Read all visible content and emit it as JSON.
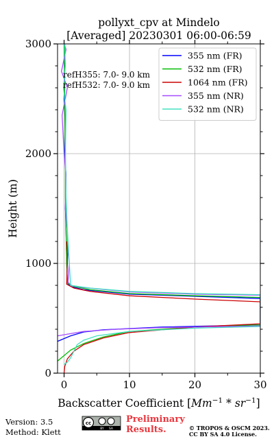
{
  "chart_data": {
    "type": "line",
    "title_line1": "pollyxt_cpv at Mindelo",
    "title_line2": "[Averaged] 20230301 06:00-06:59",
    "xlabel_pre": "Backscatter Coefficient [",
    "xlabel_math": "Mm",
    "xlabel_sup1": "−1",
    "xlabel_mid": " * ",
    "xlabel_math2": "sr",
    "xlabel_sup2": "−1",
    "xlabel_post": "]",
    "ylabel": "Height (m)",
    "xlim": [
      -1,
      30
    ],
    "ylim": [
      0,
      3000
    ],
    "x_ticks": [
      0,
      10,
      20,
      30
    ],
    "x_tick_labels": [
      "0",
      "10",
      "20",
      "30"
    ],
    "y_ticks": [
      0,
      1000,
      2000,
      3000
    ],
    "y_tick_labels": [
      "0",
      "1000",
      "2000",
      "3000"
    ],
    "grid": true,
    "legend_position": "top-right",
    "annotations": [
      "refH355:  7.0- 9.0 km",
      "refH532:  7.0- 9.0 km"
    ],
    "series": [
      {
        "name": "355 nm (FR)",
        "color": "#0000ff",
        "points": [
          [
            -1.0,
            290
          ],
          [
            1.0,
            340
          ],
          [
            3.0,
            375
          ],
          [
            6.0,
            395
          ],
          [
            15.0,
            420
          ],
          [
            30.0,
            440
          ],
          [
            30.0,
            680
          ],
          [
            20.0,
            700
          ],
          [
            10.0,
            720
          ],
          [
            3.0,
            760
          ],
          [
            1.0,
            790
          ],
          [
            0.5,
            820
          ],
          [
            0.4,
            1000
          ],
          [
            0.3,
            1300
          ],
          [
            0.2,
            1500
          ],
          [
            0.3,
            1800
          ],
          [
            0.1,
            2000
          ],
          [
            0.2,
            2300
          ],
          [
            0.0,
            2500
          ],
          [
            0.1,
            2800
          ],
          [
            0.1,
            3000
          ]
        ]
      },
      {
        "name": "532 nm (FR)",
        "color": "#00bb00",
        "points": [
          [
            -1.0,
            110
          ],
          [
            0.0,
            160
          ],
          [
            1.0,
            210
          ],
          [
            3.0,
            270
          ],
          [
            6.0,
            330
          ],
          [
            10.0,
            380
          ],
          [
            20.0,
            420
          ],
          [
            30.0,
            440
          ],
          [
            30.0,
            690
          ],
          [
            20.0,
            705
          ],
          [
            10.0,
            725
          ],
          [
            4.0,
            760
          ],
          [
            1.5,
            790
          ],
          [
            0.5,
            820
          ],
          [
            0.4,
            1000
          ],
          [
            0.3,
            1300
          ],
          [
            0.2,
            1600
          ],
          [
            0.2,
            2000
          ],
          [
            0.1,
            2500
          ],
          [
            0.0,
            3000
          ]
        ]
      },
      {
        "name": "1064 nm (FR)",
        "color": "#cc0000",
        "points": [
          [
            0.0,
            0
          ],
          [
            0.1,
            60
          ],
          [
            0.5,
            130
          ],
          [
            1.5,
            200
          ],
          [
            3.0,
            260
          ],
          [
            6.0,
            320
          ],
          [
            10.0,
            370
          ],
          [
            20.0,
            420
          ],
          [
            30.0,
            450
          ],
          [
            30.0,
            650
          ],
          [
            20.0,
            675
          ],
          [
            10.0,
            705
          ],
          [
            4.0,
            745
          ],
          [
            1.5,
            775
          ],
          [
            0.4,
            810
          ],
          [
            0.5,
            1000
          ],
          [
            0.5,
            1100
          ],
          [
            0.4,
            1200
          ]
        ]
      },
      {
        "name": "355 nm (NR)",
        "color": "#a64dff",
        "points": [
          [
            -1.0,
            340
          ],
          [
            0.0,
            350
          ],
          [
            3.0,
            380
          ],
          [
            8.0,
            400
          ],
          [
            15.0,
            415
          ],
          [
            30.0,
            430
          ],
          [
            30.0,
            710
          ],
          [
            20.0,
            720
          ],
          [
            10.0,
            740
          ],
          [
            3.0,
            780
          ],
          [
            1.0,
            800
          ],
          [
            0.6,
            830
          ],
          [
            0.8,
            1000
          ],
          [
            0.6,
            1100
          ],
          [
            0.5,
            1300
          ],
          [
            0.2,
            1500
          ],
          [
            0.3,
            1800
          ],
          [
            0.0,
            2000
          ],
          [
            -0.3,
            2350
          ],
          [
            0.5,
            2600
          ],
          [
            -0.4,
            2750
          ],
          [
            0.3,
            2950
          ],
          [
            0.0,
            3000
          ]
        ]
      },
      {
        "name": "532 nm (NR)",
        "color": "#40e0c0",
        "points": [
          [
            0.0,
            80
          ],
          [
            0.5,
            100
          ],
          [
            1.0,
            140
          ],
          [
            1.5,
            200
          ],
          [
            2.0,
            260
          ],
          [
            3.0,
            300
          ],
          [
            5.0,
            340
          ],
          [
            10.0,
            380
          ],
          [
            20.0,
            410
          ],
          [
            30.0,
            425
          ],
          [
            30.0,
            715
          ],
          [
            20.0,
            725
          ],
          [
            10.0,
            745
          ],
          [
            4.0,
            775
          ],
          [
            1.0,
            800
          ],
          [
            0.8,
            1000
          ],
          [
            0.5,
            1300
          ],
          [
            0.3,
            1600
          ],
          [
            0.2,
            2000
          ],
          [
            0.3,
            2400
          ],
          [
            -0.1,
            2600
          ],
          [
            0.2,
            2800
          ],
          [
            0.1,
            3000
          ]
        ]
      }
    ]
  },
  "footer": {
    "version": "Version: 3.5",
    "method": "Method: Klett",
    "preliminary_line1": "Preliminary",
    "preliminary_line2": "Results.",
    "copyright_line1": "© TROPOS & OSCM 2023.",
    "copyright_line2": "CC BY SA 4.0 License.",
    "license_logo_text": "cc by sa",
    "accent_color": "#e8363d"
  }
}
